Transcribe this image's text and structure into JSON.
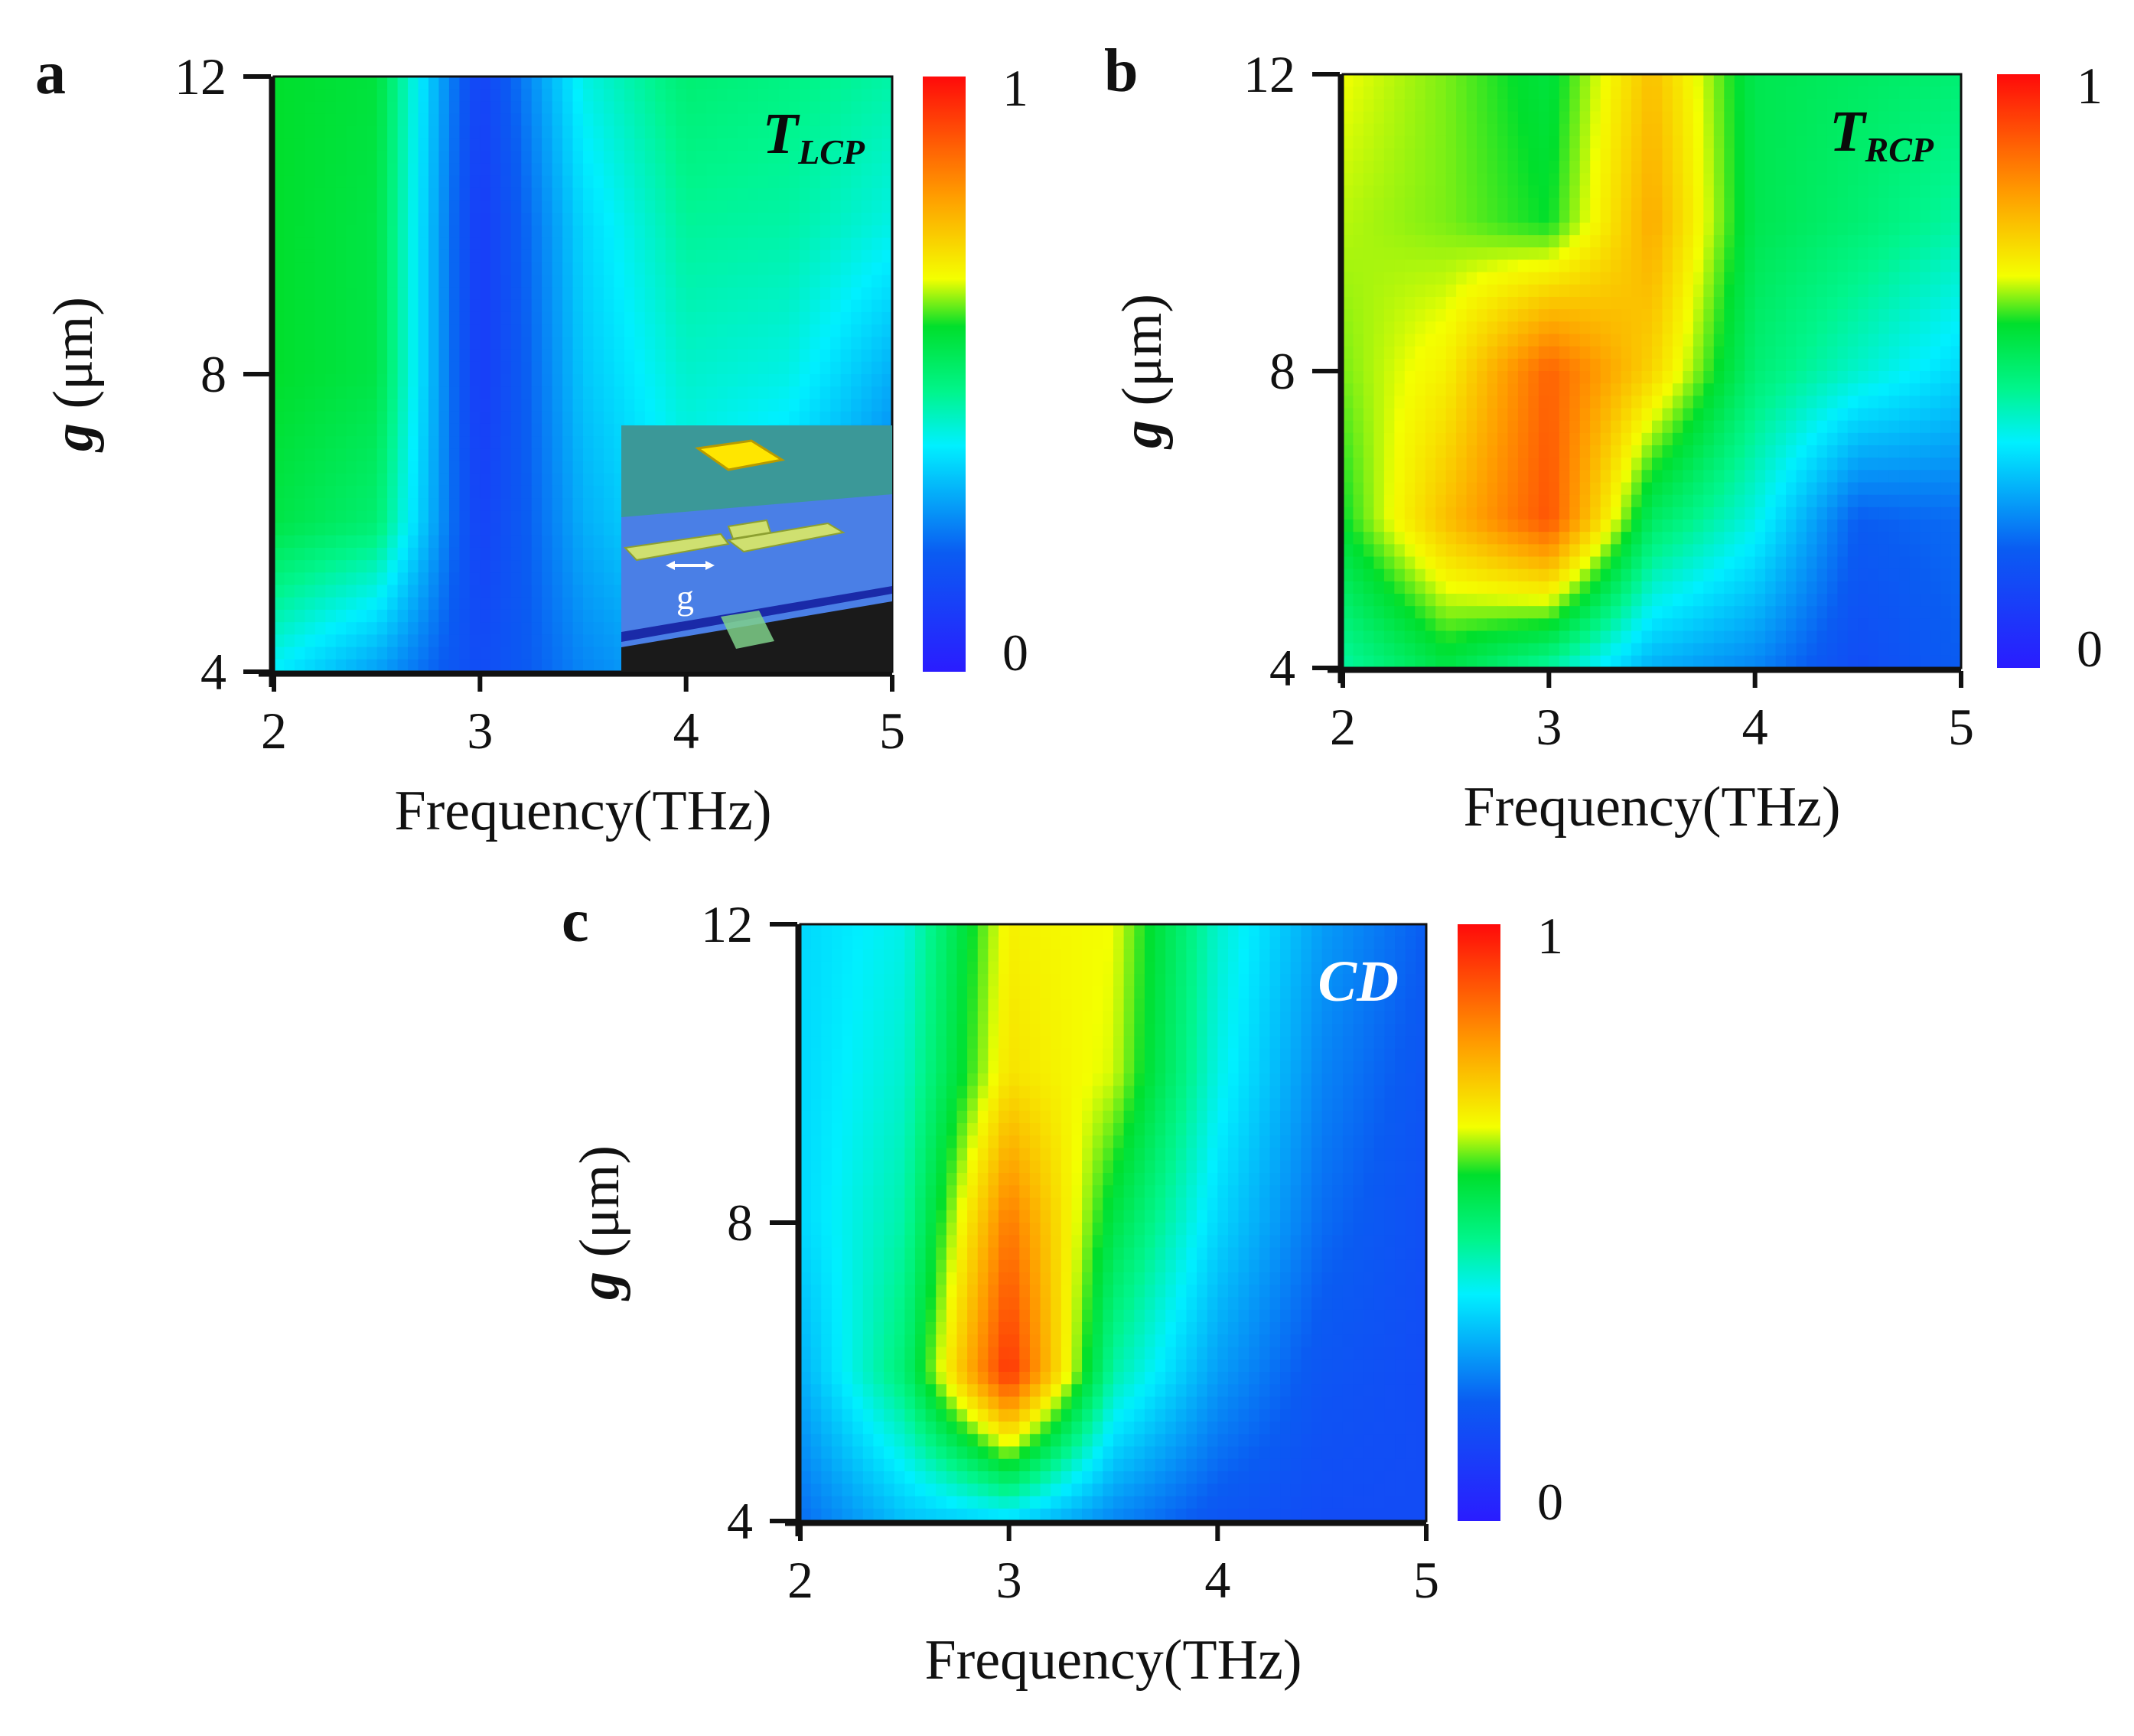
{
  "colormap": {
    "stops": [
      {
        "v": 0.0,
        "color": "#2a1cff"
      },
      {
        "v": 0.2,
        "color": "#0a5cf2"
      },
      {
        "v": 0.38,
        "color": "#00f0ff"
      },
      {
        "v": 0.47,
        "color": "#00f58c"
      },
      {
        "v": 0.58,
        "color": "#00df2c"
      },
      {
        "v": 0.66,
        "color": "#f4ff00"
      },
      {
        "v": 0.8,
        "color": "#ff9c00"
      },
      {
        "v": 1.0,
        "color": "#ff0a0a"
      }
    ]
  },
  "chart_data": [
    {
      "id": "a",
      "type": "heatmap",
      "panel_label": "a",
      "in_plot_label": {
        "main": "T",
        "sub": "LCP",
        "color": "#0a0a0a"
      },
      "xlabel": "Frequency(THz)",
      "ylabel_symbol": "g",
      "ylabel_unit": " (μm)",
      "x_ticks": [
        {
          "v": 2,
          "label": "2"
        },
        {
          "v": 3,
          "label": "3"
        },
        {
          "v": 4,
          "label": "4"
        },
        {
          "v": 5,
          "label": "5"
        }
      ],
      "y_ticks": [
        {
          "v": 4,
          "label": "4"
        },
        {
          "v": 8,
          "label": "8"
        },
        {
          "v": 12,
          "label": "12"
        }
      ],
      "xlim": [
        2,
        5
      ],
      "ylim": [
        4,
        12
      ],
      "colorbar": {
        "min_label": "0",
        "max_label": "1",
        "range": [
          0,
          1
        ]
      },
      "inset": {
        "description": "unit cell schematic",
        "gap_label": "g"
      },
      "x": [
        2,
        2.5,
        3,
        3.5,
        4,
        4.5,
        5
      ],
      "y": [
        4,
        6,
        8,
        10,
        12
      ],
      "z": [
        [
          0.38,
          0.28,
          0.15,
          0.25,
          0.3,
          0.25,
          0.18
        ],
        [
          0.55,
          0.5,
          0.12,
          0.3,
          0.38,
          0.32,
          0.22
        ],
        [
          0.58,
          0.55,
          0.1,
          0.33,
          0.42,
          0.4,
          0.3
        ],
        [
          0.58,
          0.55,
          0.1,
          0.35,
          0.46,
          0.45,
          0.4
        ],
        [
          0.58,
          0.56,
          0.12,
          0.4,
          0.5,
          0.48,
          0.45
        ]
      ]
    },
    {
      "id": "b",
      "type": "heatmap",
      "panel_label": "b",
      "in_plot_label": {
        "main": "T",
        "sub": "RCP",
        "color": "#0a0a0a"
      },
      "xlabel": "Frequency(THz)",
      "ylabel_symbol": "g",
      "ylabel_unit": " (μm)",
      "x_ticks": [
        {
          "v": 2,
          "label": "2"
        },
        {
          "v": 3,
          "label": "3"
        },
        {
          "v": 4,
          "label": "4"
        },
        {
          "v": 5,
          "label": "5"
        }
      ],
      "y_ticks": [
        {
          "v": 4,
          "label": "4"
        },
        {
          "v": 8,
          "label": "8"
        },
        {
          "v": 12,
          "label": "12"
        }
      ],
      "xlim": [
        2,
        5
      ],
      "ylim": [
        4,
        12
      ],
      "colorbar": {
        "min_label": "0",
        "max_label": "1",
        "range": [
          0,
          1
        ]
      },
      "x": [
        2,
        2.5,
        3,
        3.5,
        4,
        4.5,
        5
      ],
      "y": [
        4,
        6,
        8,
        10,
        12
      ],
      "z": [
        [
          0.45,
          0.55,
          0.45,
          0.3,
          0.25,
          0.15,
          0.2
        ],
        [
          0.58,
          0.75,
          0.9,
          0.52,
          0.4,
          0.2,
          0.22
        ],
        [
          0.62,
          0.68,
          0.88,
          0.72,
          0.5,
          0.42,
          0.35
        ],
        [
          0.64,
          0.62,
          0.58,
          0.78,
          0.54,
          0.5,
          0.45
        ],
        [
          0.66,
          0.62,
          0.56,
          0.75,
          0.54,
          0.52,
          0.5
        ]
      ]
    },
    {
      "id": "c",
      "type": "heatmap",
      "panel_label": "c",
      "in_plot_label": {
        "main": "CD",
        "sub": "",
        "color": "#ffffff"
      },
      "xlabel": "Frequency(THz)",
      "ylabel_symbol": "g",
      "ylabel_unit": " (μm)",
      "x_ticks": [
        {
          "v": 2,
          "label": "2"
        },
        {
          "v": 3,
          "label": "3"
        },
        {
          "v": 4,
          "label": "4"
        },
        {
          "v": 5,
          "label": "5"
        }
      ],
      "y_ticks": [
        {
          "v": 4,
          "label": "4"
        },
        {
          "v": 8,
          "label": "8"
        },
        {
          "v": 12,
          "label": "12"
        }
      ],
      "xlim": [
        2,
        5
      ],
      "ylim": [
        4,
        12
      ],
      "colorbar": {
        "min_label": "0",
        "max_label": "1",
        "range": [
          0,
          1
        ]
      },
      "x": [
        2,
        2.5,
        3,
        3.5,
        4,
        4.5,
        5
      ],
      "y": [
        4,
        6,
        8,
        10,
        12
      ],
      "z": [
        [
          0.22,
          0.32,
          0.35,
          0.25,
          0.18,
          0.15,
          0.15
        ],
        [
          0.3,
          0.5,
          0.95,
          0.45,
          0.28,
          0.18,
          0.15
        ],
        [
          0.35,
          0.45,
          0.85,
          0.55,
          0.35,
          0.22,
          0.16
        ],
        [
          0.35,
          0.42,
          0.7,
          0.65,
          0.4,
          0.25,
          0.18
        ],
        [
          0.35,
          0.4,
          0.68,
          0.66,
          0.42,
          0.28,
          0.2
        ]
      ]
    }
  ]
}
